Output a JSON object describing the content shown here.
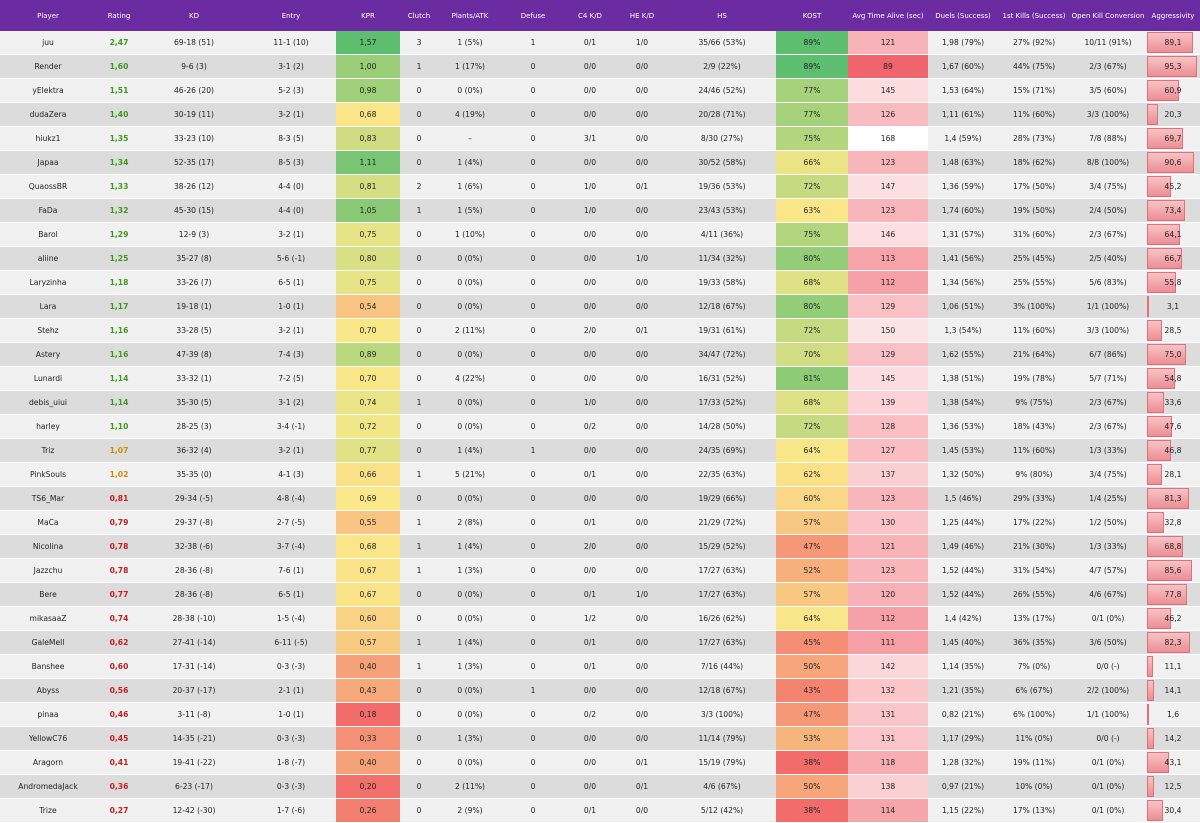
{
  "columns": {
    "player": "Player",
    "rating": "Rating",
    "kd": "KD",
    "entry": "Entry",
    "kpr": "KPR",
    "clutch": "Clutch",
    "plants": "Plants/ATK",
    "defuse": "Defuse",
    "c4kd": "C4 K/D",
    "hekd": "HE K/D",
    "hs": "HS",
    "kost": "KOST",
    "avgtime": "Avg Time Alive (sec)",
    "duels": "Duels (Success)",
    "firstkills": "1st Kills (Success)",
    "openkill": "Open Kill Conversion",
    "aggr": "Aggressivity"
  },
  "colors": {
    "header_bg": "#6a2ca0",
    "rating_green": "#3a9a1a",
    "rating_orange": "#d08a00",
    "rating_red": "#cc1a1a"
  },
  "rows": [
    {
      "player": "juu",
      "rating": "2,47",
      "kd": "69-18 (51)",
      "entry": "11-1 (10)",
      "kpr": "1,57",
      "clutch": "3",
      "plants": "1 (5%)",
      "defuse": "1",
      "c4kd": "0/1",
      "hekd": "1/0",
      "hs": "35/66 (53%)",
      "kost": "89%",
      "avgtime": "121",
      "duels": "1,98 (79%)",
      "firstkills": "27% (92%)",
      "openkill": "10/11 (91%)",
      "aggr": "89,1"
    },
    {
      "player": "Render",
      "rating": "1,60",
      "kd": "9-6 (3)",
      "entry": "3-1 (2)",
      "kpr": "1,00",
      "clutch": "1",
      "plants": "1 (17%)",
      "defuse": "0",
      "c4kd": "0/0",
      "hekd": "0/0",
      "hs": "2/9 (22%)",
      "kost": "89%",
      "avgtime": "89",
      "duels": "1,67 (60%)",
      "firstkills": "44% (75%)",
      "openkill": "2/3 (67%)",
      "aggr": "95,3"
    },
    {
      "player": "yElektra",
      "rating": "1,51",
      "kd": "46-26 (20)",
      "entry": "5-2 (3)",
      "kpr": "0,98",
      "clutch": "0",
      "plants": "0 (0%)",
      "defuse": "0",
      "c4kd": "0/0",
      "hekd": "0/0",
      "hs": "24/46 (52%)",
      "kost": "77%",
      "avgtime": "145",
      "duels": "1,53 (64%)",
      "firstkills": "15% (71%)",
      "openkill": "3/5 (60%)",
      "aggr": "60,9"
    },
    {
      "player": "dudaZera",
      "rating": "1,40",
      "kd": "30-19 (11)",
      "entry": "3-2 (1)",
      "kpr": "0,68",
      "clutch": "0",
      "plants": "4 (19%)",
      "defuse": "0",
      "c4kd": "0/0",
      "hekd": "0/0",
      "hs": "20/28 (71%)",
      "kost": "77%",
      "avgtime": "126",
      "duels": "1,11 (61%)",
      "firstkills": "11% (60%)",
      "openkill": "3/3 (100%)",
      "aggr": "20,3"
    },
    {
      "player": "hiukz1",
      "rating": "1,35",
      "kd": "33-23 (10)",
      "entry": "8-3 (5)",
      "kpr": "0,83",
      "clutch": "0",
      "plants": "–",
      "defuse": "0",
      "c4kd": "3/1",
      "hekd": "0/0",
      "hs": "8/30 (27%)",
      "kost": "75%",
      "avgtime": "168",
      "duels": "1,4 (59%)",
      "firstkills": "28% (73%)",
      "openkill": "7/8 (88%)",
      "aggr": "69,7"
    },
    {
      "player": "Japaa",
      "rating": "1,34",
      "kd": "52-35 (17)",
      "entry": "8-5 (3)",
      "kpr": "1,11",
      "clutch": "0",
      "plants": "1 (4%)",
      "defuse": "0",
      "c4kd": "0/0",
      "hekd": "0/0",
      "hs": "30/52 (58%)",
      "kost": "66%",
      "avgtime": "123",
      "duels": "1,48 (63%)",
      "firstkills": "18% (62%)",
      "openkill": "8/8 (100%)",
      "aggr": "90,6"
    },
    {
      "player": "QuaossBR",
      "rating": "1,33",
      "kd": "38-26 (12)",
      "entry": "4-4 (0)",
      "kpr": "0,81",
      "clutch": "2",
      "plants": "1 (6%)",
      "defuse": "0",
      "c4kd": "1/0",
      "hekd": "0/1",
      "hs": "19/36 (53%)",
      "kost": "72%",
      "avgtime": "147",
      "duels": "1,36 (59%)",
      "firstkills": "17% (50%)",
      "openkill": "3/4 (75%)",
      "aggr": "45,2"
    },
    {
      "player": "FaDa",
      "rating": "1,32",
      "kd": "45-30 (15)",
      "entry": "4-4 (0)",
      "kpr": "1,05",
      "clutch": "1",
      "plants": "1 (5%)",
      "defuse": "0",
      "c4kd": "1/0",
      "hekd": "0/0",
      "hs": "23/43 (53%)",
      "kost": "63%",
      "avgtime": "123",
      "duels": "1,74 (60%)",
      "firstkills": "19% (50%)",
      "openkill": "2/4 (50%)",
      "aggr": "73,4"
    },
    {
      "player": "Barol",
      "rating": "1,29",
      "kd": "12-9 (3)",
      "entry": "3-2 (1)",
      "kpr": "0,75",
      "clutch": "0",
      "plants": "1 (10%)",
      "defuse": "0",
      "c4kd": "0/0",
      "hekd": "0/0",
      "hs": "4/11 (36%)",
      "kost": "75%",
      "avgtime": "146",
      "duels": "1,31 (57%)",
      "firstkills": "31% (60%)",
      "openkill": "2/3 (67%)",
      "aggr": "64,1"
    },
    {
      "player": "aliine",
      "rating": "1,25",
      "kd": "35-27 (8)",
      "entry": "5-6 (-1)",
      "kpr": "0,80",
      "clutch": "0",
      "plants": "0 (0%)",
      "defuse": "0",
      "c4kd": "0/0",
      "hekd": "1/0",
      "hs": "11/34 (32%)",
      "kost": "80%",
      "avgtime": "113",
      "duels": "1,41 (56%)",
      "firstkills": "25% (45%)",
      "openkill": "2/5 (40%)",
      "aggr": "66,7"
    },
    {
      "player": "Laryzinha",
      "rating": "1,18",
      "kd": "33-26 (7)",
      "entry": "6-5 (1)",
      "kpr": "0,75",
      "clutch": "0",
      "plants": "0 (0%)",
      "defuse": "0",
      "c4kd": "0/0",
      "hekd": "0/0",
      "hs": "19/33 (58%)",
      "kost": "68%",
      "avgtime": "112",
      "duels": "1,34 (56%)",
      "firstkills": "25% (55%)",
      "openkill": "5/6 (83%)",
      "aggr": "55,8"
    },
    {
      "player": "Lara",
      "rating": "1,17",
      "kd": "19-18 (1)",
      "entry": "1-0 (1)",
      "kpr": "0,54",
      "clutch": "0",
      "plants": "0 (0%)",
      "defuse": "0",
      "c4kd": "0/0",
      "hekd": "0/0",
      "hs": "12/18 (67%)",
      "kost": "80%",
      "avgtime": "129",
      "duels": "1,06 (51%)",
      "firstkills": "3% (100%)",
      "openkill": "1/1 (100%)",
      "aggr": "3,1"
    },
    {
      "player": "Stehz",
      "rating": "1,16",
      "kd": "33-28 (5)",
      "entry": "3-2 (1)",
      "kpr": "0,70",
      "clutch": "0",
      "plants": "2 (11%)",
      "defuse": "0",
      "c4kd": "2/0",
      "hekd": "0/1",
      "hs": "19/31 (61%)",
      "kost": "72%",
      "avgtime": "150",
      "duels": "1,3 (54%)",
      "firstkills": "11% (60%)",
      "openkill": "3/3 (100%)",
      "aggr": "28,5"
    },
    {
      "player": "Astery",
      "rating": "1,16",
      "kd": "47-39 (8)",
      "entry": "7-4 (3)",
      "kpr": "0,89",
      "clutch": "0",
      "plants": "0 (0%)",
      "defuse": "0",
      "c4kd": "0/0",
      "hekd": "0/0",
      "hs": "34/47 (72%)",
      "kost": "70%",
      "avgtime": "129",
      "duels": "1,62 (55%)",
      "firstkills": "21% (64%)",
      "openkill": "6/7 (86%)",
      "aggr": "75,0"
    },
    {
      "player": "Lunardi",
      "rating": "1,14",
      "kd": "33-32 (1)",
      "entry": "7-2 (5)",
      "kpr": "0,70",
      "clutch": "0",
      "plants": "4 (22%)",
      "defuse": "0",
      "c4kd": "0/0",
      "hekd": "0/0",
      "hs": "16/31 (52%)",
      "kost": "81%",
      "avgtime": "145",
      "duels": "1,38 (51%)",
      "firstkills": "19% (78%)",
      "openkill": "5/7 (71%)",
      "aggr": "54,8"
    },
    {
      "player": "debis_uiui",
      "rating": "1,14",
      "kd": "35-30 (5)",
      "entry": "3-1 (2)",
      "kpr": "0,74",
      "clutch": "1",
      "plants": "0 (0%)",
      "defuse": "0",
      "c4kd": "1/0",
      "hekd": "0/0",
      "hs": "17/33 (52%)",
      "kost": "68%",
      "avgtime": "139",
      "duels": "1,38 (54%)",
      "firstkills": "9% (75%)",
      "openkill": "2/3 (67%)",
      "aggr": "33,6"
    },
    {
      "player": "harley",
      "rating": "1,10",
      "kd": "28-25 (3)",
      "entry": "3-4 (-1)",
      "kpr": "0,72",
      "clutch": "0",
      "plants": "0 (0%)",
      "defuse": "0",
      "c4kd": "0/2",
      "hekd": "0/0",
      "hs": "14/28 (50%)",
      "kost": "72%",
      "avgtime": "128",
      "duels": "1,36 (53%)",
      "firstkills": "18% (43%)",
      "openkill": "2/3 (67%)",
      "aggr": "47,6"
    },
    {
      "player": "Triz",
      "rating": "1,07",
      "kd": "36-32 (4)",
      "entry": "3-2 (1)",
      "kpr": "0,77",
      "clutch": "0",
      "plants": "1 (4%)",
      "defuse": "1",
      "c4kd": "0/0",
      "hekd": "0/0",
      "hs": "24/35 (69%)",
      "kost": "64%",
      "avgtime": "127",
      "duels": "1,45 (53%)",
      "firstkills": "11% (60%)",
      "openkill": "1/3 (33%)",
      "aggr": "46,8"
    },
    {
      "player": "PinkSouls",
      "rating": "1,02",
      "kd": "35-35 (0)",
      "entry": "4-1 (3)",
      "kpr": "0,66",
      "clutch": "1",
      "plants": "5 (21%)",
      "defuse": "0",
      "c4kd": "0/1",
      "hekd": "0/0",
      "hs": "22/35 (63%)",
      "kost": "62%",
      "avgtime": "137",
      "duels": "1,32 (50%)",
      "firstkills": "9% (80%)",
      "openkill": "3/4 (75%)",
      "aggr": "28,1"
    },
    {
      "player": "TS6_Mar",
      "rating": "0,81",
      "kd": "29-34 (-5)",
      "entry": "4-8 (-4)",
      "kpr": "0,69",
      "clutch": "0",
      "plants": "0 (0%)",
      "defuse": "0",
      "c4kd": "0/0",
      "hekd": "0/0",
      "hs": "19/29 (66%)",
      "kost": "60%",
      "avgtime": "123",
      "duels": "1,5 (46%)",
      "firstkills": "29% (33%)",
      "openkill": "1/4 (25%)",
      "aggr": "81,3"
    },
    {
      "player": "MaCa",
      "rating": "0,79",
      "kd": "29-37 (-8)",
      "entry": "2-7 (-5)",
      "kpr": "0,55",
      "clutch": "1",
      "plants": "2 (8%)",
      "defuse": "0",
      "c4kd": "0/1",
      "hekd": "0/0",
      "hs": "21/29 (72%)",
      "kost": "57%",
      "avgtime": "130",
      "duels": "1,25 (44%)",
      "firstkills": "17% (22%)",
      "openkill": "1/2 (50%)",
      "aggr": "32,8"
    },
    {
      "player": "Nicolina",
      "rating": "0,78",
      "kd": "32-38 (-6)",
      "entry": "3-7 (-4)",
      "kpr": "0,68",
      "clutch": "1",
      "plants": "1 (4%)",
      "defuse": "0",
      "c4kd": "2/0",
      "hekd": "0/0",
      "hs": "15/29 (52%)",
      "kost": "47%",
      "avgtime": "121",
      "duels": "1,49 (46%)",
      "firstkills": "21% (30%)",
      "openkill": "1/3 (33%)",
      "aggr": "68,8"
    },
    {
      "player": "Jazzchu",
      "rating": "0,78",
      "kd": "28-36 (-8)",
      "entry": "7-6 (1)",
      "kpr": "0,67",
      "clutch": "1",
      "plants": "1 (3%)",
      "defuse": "0",
      "c4kd": "0/0",
      "hekd": "0/0",
      "hs": "17/27 (63%)",
      "kost": "52%",
      "avgtime": "123",
      "duels": "1,52 (44%)",
      "firstkills": "31% (54%)",
      "openkill": "4/7 (57%)",
      "aggr": "85,6"
    },
    {
      "player": "Bere",
      "rating": "0,77",
      "kd": "28-36 (-8)",
      "entry": "6-5 (1)",
      "kpr": "0,67",
      "clutch": "0",
      "plants": "0 (0%)",
      "defuse": "0",
      "c4kd": "0/1",
      "hekd": "1/0",
      "hs": "17/27 (63%)",
      "kost": "57%",
      "avgtime": "120",
      "duels": "1,52 (44%)",
      "firstkills": "26% (55%)",
      "openkill": "4/6 (67%)",
      "aggr": "77,8"
    },
    {
      "player": "mikasaaZ",
      "rating": "0,74",
      "kd": "28-38 (-10)",
      "entry": "1-5 (-4)",
      "kpr": "0,60",
      "clutch": "0",
      "plants": "0 (0%)",
      "defuse": "0",
      "c4kd": "1/2",
      "hekd": "0/0",
      "hs": "16/26 (62%)",
      "kost": "64%",
      "avgtime": "112",
      "duels": "1,4 (42%)",
      "firstkills": "13% (17%)",
      "openkill": "0/1 (0%)",
      "aggr": "46,2"
    },
    {
      "player": "GaleMell",
      "rating": "0,62",
      "kd": "27-41 (-14)",
      "entry": "6-11 (-5)",
      "kpr": "0,57",
      "clutch": "1",
      "plants": "1 (4%)",
      "defuse": "0",
      "c4kd": "0/1",
      "hekd": "0/0",
      "hs": "17/27 (63%)",
      "kost": "45%",
      "avgtime": "111",
      "duels": "1,45 (40%)",
      "firstkills": "36% (35%)",
      "openkill": "3/6 (50%)",
      "aggr": "82,3"
    },
    {
      "player": "Banshee",
      "rating": "0,60",
      "kd": "17-31 (-14)",
      "entry": "0-3 (-3)",
      "kpr": "0,40",
      "clutch": "1",
      "plants": "1 (3%)",
      "defuse": "0",
      "c4kd": "0/1",
      "hekd": "0/0",
      "hs": "7/16 (44%)",
      "kost": "50%",
      "avgtime": "142",
      "duels": "1,14 (35%)",
      "firstkills": "7% (0%)",
      "openkill": "0/0 (-)",
      "aggr": "11,1"
    },
    {
      "player": "Abyss",
      "rating": "0,56",
      "kd": "20-37 (-17)",
      "entry": "2-1 (1)",
      "kpr": "0,43",
      "clutch": "0",
      "plants": "0 (0%)",
      "defuse": "1",
      "c4kd": "0/0",
      "hekd": "0/0",
      "hs": "12/18 (67%)",
      "kost": "43%",
      "avgtime": "132",
      "duels": "1,21 (35%)",
      "firstkills": "6% (67%)",
      "openkill": "2/2 (100%)",
      "aggr": "14,1"
    },
    {
      "player": "pinaa",
      "rating": "0,46",
      "kd": "3-11 (-8)",
      "entry": "1-0 (1)",
      "kpr": "0,18",
      "clutch": "0",
      "plants": "0 (0%)",
      "defuse": "0",
      "c4kd": "0/2",
      "hekd": "0/0",
      "hs": "3/3 (100%)",
      "kost": "47%",
      "avgtime": "131",
      "duels": "0,82 (21%)",
      "firstkills": "6% (100%)",
      "openkill": "1/1 (100%)",
      "aggr": "1,6"
    },
    {
      "player": "YellowC76",
      "rating": "0,45",
      "kd": "14-35 (-21)",
      "entry": "0-3 (-3)",
      "kpr": "0,33",
      "clutch": "0",
      "plants": "1 (3%)",
      "defuse": "0",
      "c4kd": "0/0",
      "hekd": "0/0",
      "hs": "11/14 (79%)",
      "kost": "53%",
      "avgtime": "131",
      "duels": "1,17 (29%)",
      "firstkills": "11% (0%)",
      "openkill": "0/0 (-)",
      "aggr": "14,2"
    },
    {
      "player": "Aragorn",
      "rating": "0,41",
      "kd": "19-41 (-22)",
      "entry": "1-8 (-7)",
      "kpr": "0,40",
      "clutch": "0",
      "plants": "0 (0%)",
      "defuse": "0",
      "c4kd": "0/0",
      "hekd": "0/1",
      "hs": "15/19 (79%)",
      "kost": "38%",
      "avgtime": "118",
      "duels": "1,28 (32%)",
      "firstkills": "19% (11%)",
      "openkill": "0/1 (0%)",
      "aggr": "43,1"
    },
    {
      "player": "AndromedaJack",
      "rating": "0,36",
      "kd": "6-23 (-17)",
      "entry": "0-3 (-3)",
      "kpr": "0,20",
      "clutch": "0",
      "plants": "2 (11%)",
      "defuse": "0",
      "c4kd": "0/0",
      "hekd": "0/1",
      "hs": "4/6 (67%)",
      "kost": "50%",
      "avgtime": "138",
      "duels": "0,97 (21%)",
      "firstkills": "10% (0%)",
      "openkill": "0/1 (0%)",
      "aggr": "12,5"
    },
    {
      "player": "Trize",
      "rating": "0,27",
      "kd": "12-42 (-30)",
      "entry": "1-7 (-6)",
      "kpr": "0,26",
      "clutch": "0",
      "plants": "2 (9%)",
      "defuse": "0",
      "c4kd": "0/1",
      "hekd": "0/0",
      "hs": "5/12 (42%)",
      "kost": "38%",
      "avgtime": "114",
      "duels": "1,15 (22%)",
      "firstkills": "17% (13%)",
      "openkill": "0/1 (0%)",
      "aggr": "30,4"
    }
  ]
}
